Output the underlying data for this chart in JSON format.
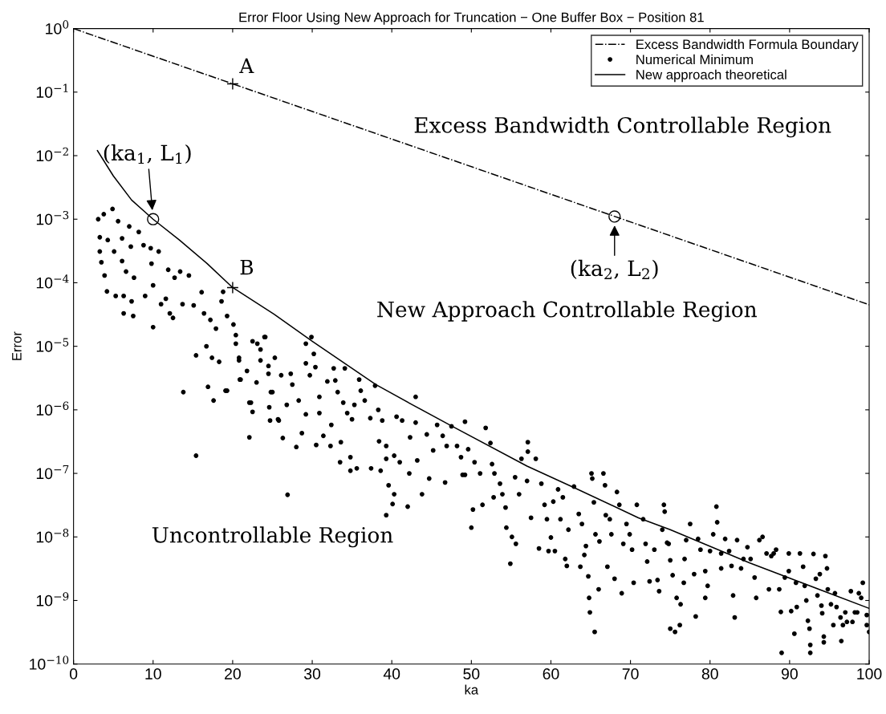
{
  "chart_data": {
    "type": "scatter",
    "title": "Error Floor Using New Approach for Truncation − One Buffer Box − Position 81",
    "xlabel": "ka",
    "ylabel": "Error",
    "log": "y",
    "grid": false,
    "legend": "top right",
    "xlim": [
      0,
      100
    ],
    "xticks": [
      0,
      10,
      20,
      30,
      40,
      50,
      60,
      70,
      80,
      90,
      100
    ],
    "ylim": [
      1e-10,
      1
    ],
    "yticks": [
      {
        "value": 1e-10,
        "label": "10$^{−10}$"
      },
      {
        "value": 1e-09,
        "label": "10$^{−9}$"
      },
      {
        "value": 1e-08,
        "label": "10$^{−8}$"
      },
      {
        "value": 1e-07,
        "label": "10$^{−7}$"
      },
      {
        "value": 1e-06,
        "label": "10$^{−6}$"
      },
      {
        "value": 1e-05,
        "label": "10$^{−5}$"
      },
      {
        "value": 0.0001,
        "label": "10$^{−4}$"
      },
      {
        "value": 0.001,
        "label": "10$^{−3}$"
      },
      {
        "value": 0.01,
        "label": "10$^{−2}$"
      },
      {
        "value": 0.1,
        "label": "10$^{−1}$"
      },
      {
        "value": 1,
        "label": "10$^{0}$"
      }
    ],
    "series": [
      {
        "name": "Excess Bandwidth Formula Boundary",
        "type": "line",
        "line_style": "dashdot",
        "marker": "none",
        "color": "#000000",
        "x": [
          0,
          100
        ],
        "values": [
          1,
          4.5e-05
        ]
      },
      {
        "name": "Numerical Minimum",
        "marker": "circle",
        "color": "#000000",
        "x": [
          3.1,
          3.8,
          4.9,
          3.3,
          4.3,
          3.3,
          3.5,
          3.9,
          4.2,
          5.3,
          5.1,
          5.6,
          6.1,
          6.1,
          6.3,
          6.3,
          7.5,
          7.0,
          7.2,
          6.6,
          7.6,
          7.3,
          8.2,
          8.8,
          9.7,
          10.7,
          9.0,
          9.8,
          10.0,
          10.0,
          11.0,
          11.9,
          11.6,
          12.1,
          12.7,
          13.4,
          12.5,
          13.7,
          14.5,
          13.8,
          15.1,
          16.1,
          15.4,
          15.4,
          16.4,
          16.9,
          16.7,
          17.4,
          17.2,
          17.6,
          18.3,
          17.9,
          18.8,
          18.6,
          19.3,
          20.1,
          19.3,
          20.4,
          20.8,
          21.0,
          22.1,
          22.1,
          23.1,
          23.5,
          24.0,
          23.0,
          24.6,
          25.7,
          24.8,
          24.5,
          20.4,
          20.8,
          22.5,
          24.1,
          23.5,
          21.8,
          20.9,
          22.3,
          22.5,
          19.1,
          24.5,
          25.3,
          25.0,
          24.7,
          25.8,
          26.1,
          26.8,
          26.9,
          26.3,
          27.3,
          27.5,
          28.0,
          28.3,
          28.7,
          29.2,
          29.9,
          29.2,
          29.7,
          30.2,
          30.4,
          29.2,
          30.5,
          30.9,
          30.9,
          31.9,
          32.3,
          31.4,
          32.7,
          32.9,
          33.2,
          32.4,
          33.6,
          33.5,
          34.1,
          33.9,
          34.4,
          34.8,
          34.8,
          35.0,
          35.3,
          35.6,
          35.9,
          36.1,
          36.6,
          37.3,
          37.4,
          37.9,
          38.3,
          38.4,
          38.6,
          38.8,
          39.3,
          39.3,
          39.6,
          40.3,
          40.3,
          40.1,
          39.3,
          40.6,
          41.0,
          42.0,
          42.2,
          42.3,
          41.3,
          43.0,
          43.2,
          43.0,
          43.8,
          44.4,
          44.7,
          45.2,
          45.7,
          46.7,
          46.9,
          46.4,
          47.5,
          48.2,
          48.9,
          48.7,
          49.2,
          49.6,
          49.2,
          50.2,
          50.0,
          50.4,
          51.1,
          51.4,
          51.8,
          52.4,
          52.6,
          52.8,
          52.9,
          53.6,
          53.9,
          54.3,
          54.4,
          54.9,
          55.1,
          55.6,
          55.5,
          56.0,
          56.3,
          57.1,
          57.1,
          57.0,
          57.5,
          58.1,
          58.5,
          58.8,
          59.2,
          59.5,
          59.7,
          60.0,
          60.3,
          60.5,
          60.9,
          61.2,
          61.5,
          61.8,
          62.0,
          62.2,
          62.9,
          63.5,
          63.9,
          63.7,
          64.2,
          64.4,
          64.7,
          64.8,
          64.9,
          65.5,
          65.1,
          65.2,
          65.4,
          65.6,
          66.0,
          66.1,
          66.6,
          66.8,
          66.9,
          67.1,
          67.4,
          67.6,
          68.0,
          68.3,
          68.6,
          68.9,
          69.1,
          69.5,
          69.9,
          70.2,
          70.4,
          70.8,
          71.6,
          71.9,
          72.1,
          72.4,
          73.0,
          73.4,
          73.6,
          74.3,
          74.6,
          74.2,
          74.0,
          74.8,
          75.0,
          75.3,
          75.8,
          76.3,
          75.0,
          75.6,
          76.2,
          76.7,
          77.0,
          77.5,
          76.8,
          78.0,
          78.2,
          78.5,
          78.8,
          79.4,
          79.4,
          79.7,
          80.0,
          80.4,
          80.8,
          80.9,
          81.4,
          81.4,
          81.9,
          82.4,
          82.7,
          82.9,
          83.1,
          83.4,
          83.9,
          84.2,
          84.7,
          85.1,
          85.6,
          85.8,
          86.2,
          86.6,
          87.1,
          87.4,
          87.7,
          88.0,
          88.3,
          88.7,
          88.9,
          89.0,
          89.4,
          89.9,
          89.9,
          90.2,
          90.6,
          90.8,
          90.9,
          91.3,
          91.7,
          91.9,
          92.1,
          92.3,
          92.5,
          92.6,
          92.6,
          93.0,
          93.3,
          93.5,
          93.8,
          94.0,
          94.1,
          94.3,
          94.3,
          94.5,
          94.7,
          94.8,
          95.2,
          95.5,
          95.7,
          95.9,
          96.4,
          96.5,
          96.7,
          97.0,
          97.2,
          97.7,
          97.9,
          98.2,
          98.5,
          98.7,
          99.0,
          99.2,
          99.7,
          100.0,
          99.7
        ],
        "values": [
          0.001,
          0.0012,
          0.00145,
          0.00052,
          0.00047,
          0.00031,
          0.00021,
          0.00013,
          7.3e-05,
          6.2e-05,
          0.00031,
          0.00093,
          0.0005,
          0.00022,
          6.2e-05,
          3.3e-05,
          3e-05,
          0.00077,
          0.00037,
          0.00015,
          0.00012,
          5.1e-05,
          0.00063,
          0.00039,
          0.00035,
          0.00031,
          6.2e-05,
          0.0002,
          9.1e-05,
          2e-05,
          4.6e-05,
          0.00016,
          5.6e-05,
          3.3e-05,
          0.00012,
          0.00015,
          2.8e-05,
          4.6e-05,
          0.00013,
          1.9e-06,
          4.4e-05,
          7.1e-05,
          7.2e-06,
          1.9e-07,
          3.3e-05,
          2.3e-06,
          1e-05,
          6.6e-06,
          2.6e-05,
          1.4e-06,
          5.7e-06,
          1.9e-05,
          7.2e-05,
          5.1e-05,
          3e-05,
          2.2e-05,
          2e-06,
          1.1e-05,
          6.6e-06,
          3e-06,
          1.3e-06,
          3.7e-07,
          1.1e-05,
          6e-06,
          1.4e-05,
          2.7e-06,
          1.1e-06,
          7.1e-07,
          1.9e-06,
          4.9e-06,
          1.5e-05,
          6e-06,
          1.2e-05,
          1.4e-05,
          8.9e-06,
          4.1e-06,
          3e-06,
          1.3e-06,
          9.3e-07,
          2e-06,
          3.7e-06,
          6.6e-06,
          1.9e-06,
          6.8e-07,
          6.8e-07,
          3.5e-06,
          1.2e-06,
          4.6e-08,
          3.6e-07,
          3.7e-06,
          2.5e-06,
          2.6e-07,
          1.4e-06,
          4.3e-07,
          1.1e-05,
          1.4e-05,
          5.4e-06,
          3.5e-06,
          7.6e-06,
          4.7e-06,
          8.5e-07,
          2.8e-07,
          1.6e-06,
          8.9e-07,
          2.8e-06,
          2.7e-07,
          3.9e-07,
          4.5e-06,
          2.9e-06,
          1.9e-06,
          5.8e-07,
          3.1e-07,
          1.5e-07,
          4.5e-06,
          1.3e-06,
          8.9e-07,
          1.8e-07,
          1.1e-07,
          7.1e-07,
          1.2e-06,
          1.2e-07,
          3e-06,
          2e-06,
          1.4e-06,
          7.4e-07,
          1.2e-07,
          2.4e-06,
          1e-06,
          3.2e-07,
          1.1e-07,
          6.8e-07,
          1.7e-07,
          2.7e-07,
          6.5e-08,
          1.9e-07,
          4.7e-08,
          3.3e-08,
          2.2e-08,
          7.8e-07,
          1.5e-07,
          3e-08,
          1e-07,
          3.7e-07,
          6.8e-07,
          1.6e-06,
          1.6e-07,
          6.3e-07,
          4.7e-08,
          4.1e-07,
          8.3e-08,
          2.3e-07,
          5.8e-07,
          7.2e-08,
          2.7e-07,
          3.9e-07,
          5.5e-07,
          2.7e-07,
          9.5e-08,
          1.8e-07,
          6.5e-07,
          2.4e-07,
          9.5e-08,
          2.7e-08,
          1.4e-08,
          1.5e-07,
          1e-07,
          3.2e-08,
          5.2e-07,
          3e-07,
          1.4e-07,
          4.2e-08,
          1e-07,
          6.9e-08,
          4.7e-08,
          2.9e-08,
          1.4e-08,
          3.8e-09,
          1e-08,
          7.8e-09,
          8.7e-08,
          4.7e-08,
          1.7e-07,
          3.1e-07,
          2.2e-07,
          7.6e-08,
          2e-08,
          1.7e-07,
          6.6e-09,
          6.9e-08,
          3.2e-08,
          1.9e-08,
          6e-09,
          9.8e-09,
          3.6e-08,
          6e-09,
          5.6e-08,
          1.9e-08,
          4.2e-08,
          4.5e-09,
          3.5e-09,
          1.3e-08,
          6.2e-08,
          2.3e-08,
          1.6e-08,
          3.4e-09,
          5.2e-09,
          7.2e-09,
          2.4e-09,
          1.1e-09,
          6.5e-10,
          3.2e-10,
          1e-07,
          8.3e-08,
          3.5e-08,
          1.1e-08,
          1.5e-09,
          8.5e-09,
          1e-07,
          6.5e-08,
          2.2e-08,
          3.4e-09,
          1.9e-08,
          1.1e-08,
          2.2e-09,
          5.1e-08,
          3.2e-08,
          1.3e-09,
          7.8e-09,
          1.6e-08,
          1.1e-08,
          6.3e-09,
          1.9e-09,
          3.2e-08,
          1.9e-08,
          7.8e-09,
          4.1e-09,
          2e-09,
          6.3e-09,
          2.1e-09,
          1.4e-09,
          2.5e-08,
          8.1e-09,
          3.2e-08,
          1.3e-08,
          7.8e-09,
          4.3e-09,
          2.5e-09,
          1.1e-09,
          8.7e-10,
          3.6e-10,
          3.2e-10,
          4.1e-10,
          1.9e-09,
          8.9e-09,
          1.6e-08,
          4.5e-09,
          2.6e-09,
          5.6e-10,
          9.3e-09,
          6.3e-09,
          2.9e-09,
          1.1e-09,
          1.7e-09,
          6e-09,
          1.1e-08,
          3e-08,
          1.7e-08,
          3.2e-09,
          5.5e-09,
          9.3e-09,
          6e-09,
          3.5e-09,
          1.2e-09,
          5.4e-10,
          8.9e-09,
          3.2e-09,
          4.5e-09,
          6.9e-09,
          4.5e-09,
          2.3e-09,
          1.1e-09,
          8.9e-09,
          1e-08,
          5.5e-09,
          1.5e-09,
          5e-09,
          5.5e-09,
          6.3e-09,
          1.5e-09,
          6.6e-10,
          1.5e-10,
          2.3e-09,
          5.5e-09,
          2.9e-09,
          6.8e-10,
          3e-10,
          1.9e-09,
          7.9e-10,
          5.5e-09,
          3.4e-09,
          1.7e-09,
          1e-09,
          4.8e-10,
          3.6e-10,
          2e-10,
          1.5e-10,
          5.4e-09,
          2.2e-09,
          1.2e-09,
          2.6e-09,
          8.3e-10,
          6.3e-10,
          2.7e-10,
          2.2e-10,
          5e-09,
          3.2e-09,
          1.5e-09,
          8.7e-10,
          4.1e-10,
          1.3e-09,
          7.9e-10,
          5.4e-10,
          2.3e-10,
          4.1e-10,
          6.5e-10,
          4.6e-10,
          1.4e-09,
          4.6e-10,
          6.5e-10,
          6.5e-10,
          1.3e-09,
          1.1e-09,
          1.9e-09,
          4.1e-10,
          3.2e-10,
          5.9e-10
        ]
      },
      {
        "name": "New approach theoretical",
        "type": "line",
        "line_style": "solid",
        "marker": "none",
        "color": "#000000",
        "x": [
          3,
          5,
          7.3,
          10,
          13.3,
          16.8,
          20,
          25.2,
          30,
          38,
          42.6,
          47.5,
          57,
          63,
          71,
          75,
          85,
          100
        ],
        "values": [
          0.012,
          0.0048,
          0.002,
          0.001,
          0.00047,
          0.0002,
          8.4e-05,
          3.2e-05,
          1.2e-05,
          2.5e-06,
          1.2e-06,
          5.6e-07,
          1.3e-07,
          5.9e-08,
          2e-08,
          1.3e-08,
          3.9e-09,
          7.5e-10
        ]
      },
      {
        "marker": "cross",
        "color": "#000000",
        "x": [
          20,
          20
        ],
        "values": [
          0.135,
          8.4e-05
        ]
      },
      {
        "marker": "circle",
        "color": "#000000",
        "x": [
          10,
          68
        ],
        "values": [
          0.001,
          0.0011
        ]
      }
    ],
    "annotations": [
      {
        "text": "A",
        "x": 20,
        "y": 0.135
      },
      {
        "text": "B",
        "x": 20,
        "y": 8.4e-05
      },
      {
        "text": "(ka$_{1}$, L$_{1}$)",
        "x": 10,
        "y": 0.001
      },
      {
        "text": "(ka$_{2}$, L$_{2}$)",
        "x": 68,
        "y": 0.0011
      },
      "Excess Bandwidth Controllable Region",
      "New Approach Controllable Region",
      "Uncontrollable Region"
    ]
  }
}
